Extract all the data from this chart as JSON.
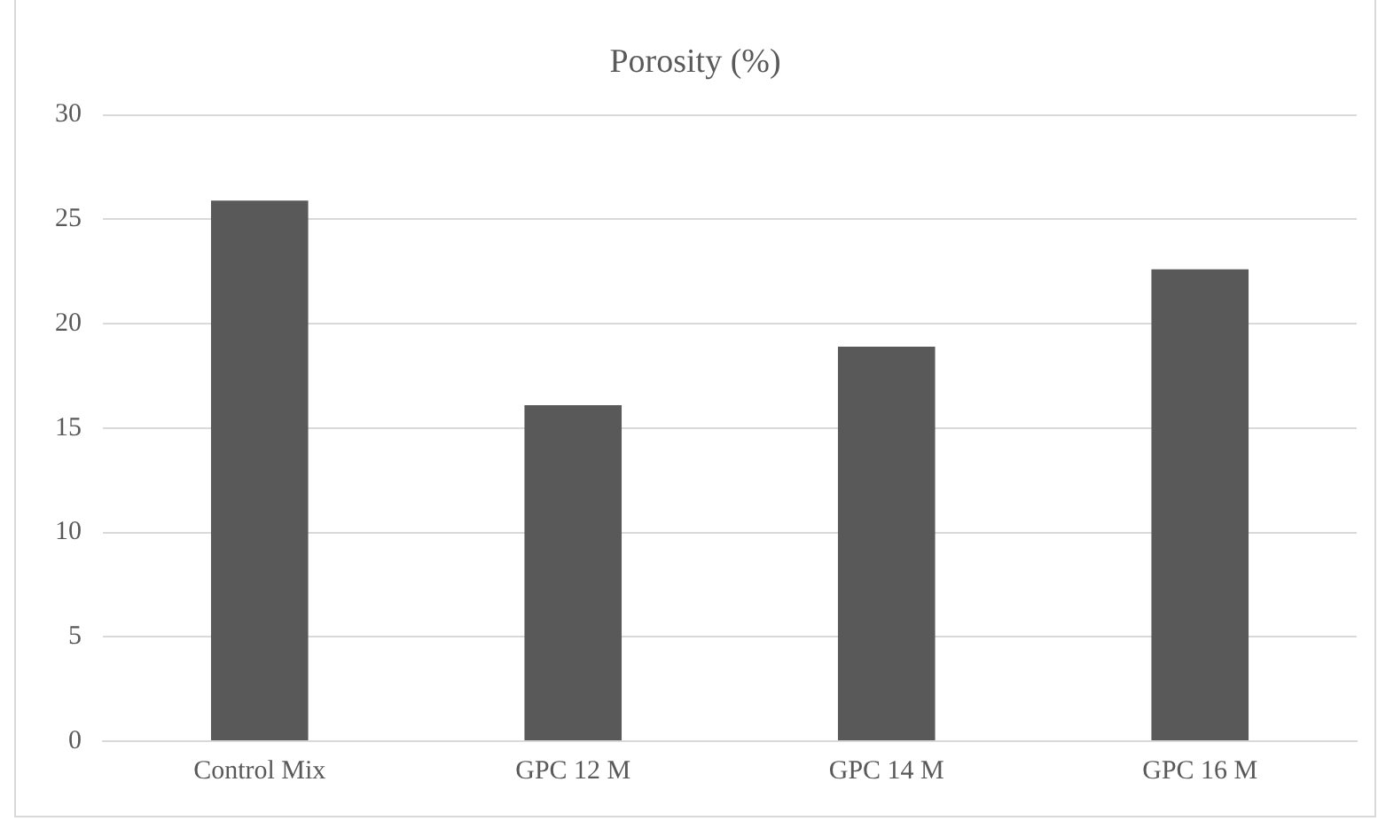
{
  "chart_data": {
    "type": "bar",
    "title": "Porosity (%)",
    "categories": [
      "Control Mix",
      "GPC 12 M",
      "GPC 14 M",
      "GPC 16 M"
    ],
    "values": [
      25.9,
      16.1,
      18.9,
      22.6
    ],
    "color": "#595959",
    "ylim": [
      0,
      30
    ],
    "yticks": [
      0,
      5,
      10,
      15,
      20,
      25,
      30
    ],
    "grid": "y",
    "legend": false
  }
}
